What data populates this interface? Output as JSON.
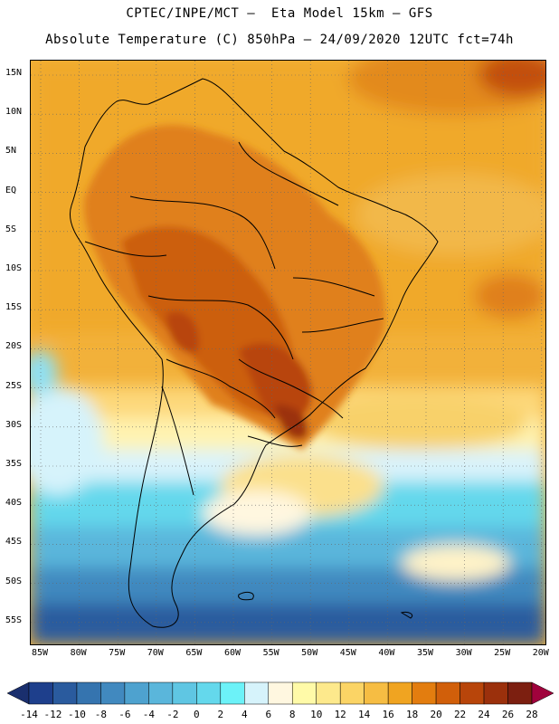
{
  "header": {
    "line1": "CPTEC/INPE/MCT –  Eta Model 15km – GFS",
    "line2": "Absolute Temperature (C) 850hPa – 24/09/2020 12UTC fct=74h"
  },
  "map": {
    "lat_labels": [
      "15N",
      "10N",
      "5N",
      "EQ",
      "5S",
      "10S",
      "15S",
      "20S",
      "25S",
      "30S",
      "35S",
      "40S",
      "45S",
      "50S",
      "55S"
    ],
    "lon_labels": [
      "85W",
      "80W",
      "75W",
      "70W",
      "65W",
      "60W",
      "55W",
      "50W",
      "45W",
      "40W",
      "35W",
      "30W",
      "25W",
      "20W"
    ]
  },
  "colorbar": {
    "labels": [
      "-14",
      "-12",
      "-10",
      "-8",
      "-6",
      "-4",
      "-2",
      "0",
      "2",
      "4",
      "6",
      "8",
      "10",
      "12",
      "14",
      "16",
      "18",
      "20",
      "22",
      "24",
      "26",
      "28"
    ],
    "colors": [
      "#1e3f8c",
      "#2a5b9e",
      "#3574af",
      "#4189bf",
      "#4ea2cf",
      "#5ab6db",
      "#5fc6e3",
      "#64d8ec",
      "#6cf2f8",
      "#d6f3fb",
      "#fff7e0",
      "#fffaa8",
      "#fde98c",
      "#fbd465",
      "#f6bd43",
      "#f0a421",
      "#e37d0f",
      "#d15f0a",
      "#b8450a",
      "#9b300c",
      "#7c1f10",
      "#a0023c"
    ]
  }
}
